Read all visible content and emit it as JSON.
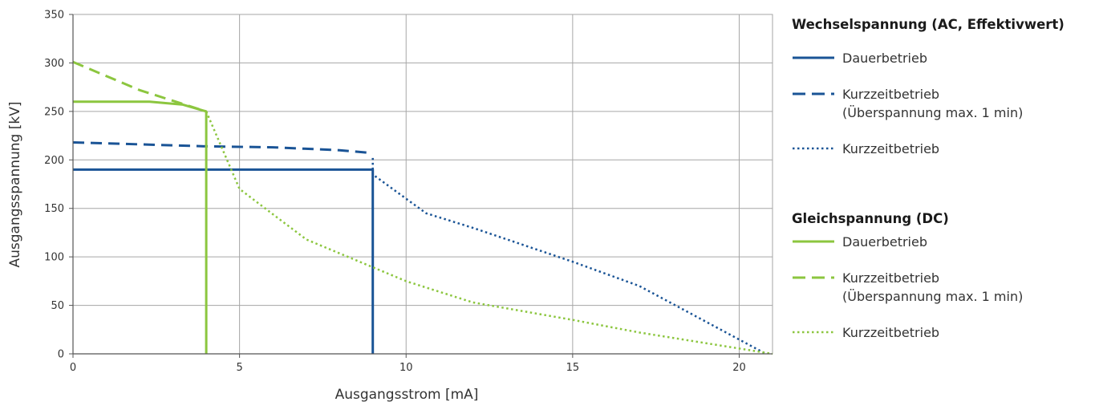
{
  "chart_data": {
    "type": "line",
    "xlabel": "Ausgangsstrom [mA]",
    "ylabel": "Ausgangsspannung [kV]",
    "xlim": [
      0,
      21
    ],
    "ylim": [
      0,
      350
    ],
    "xticks": [
      "0",
      "5",
      "10",
      "15",
      "20"
    ],
    "yticks": [
      "0",
      "50",
      "100",
      "150",
      "200",
      "250",
      "300",
      "350"
    ],
    "grid": true,
    "legend_position": "right",
    "colors": {
      "ac": "#1a5496",
      "dc": "#8cc63f",
      "grid": "#a6a6a6"
    },
    "groups": [
      {
        "heading": "Wechselspannung (AC, Effektivwert)",
        "series": [
          {
            "name": "Dauerbetrieb",
            "style": "solid",
            "x": [
              0,
              9,
              9
            ],
            "y": [
              190,
              190,
              0
            ]
          },
          {
            "name": "Kurzzeitbetrieb",
            "name2": "(Überspannung max. 1 min)",
            "style": "dashed",
            "x": [
              0,
              2,
              4,
              6,
              8,
              9
            ],
            "y": [
              218,
              216,
              214,
              213,
              210,
              207
            ]
          },
          {
            "name": "Kurzzeitbetrieb",
            "style": "dotted",
            "x": [
              9,
              9,
              10.6,
              12,
              15,
              17,
              20.8
            ],
            "y": [
              202,
              185,
              145,
              130,
              95,
              70,
              0
            ]
          }
        ]
      },
      {
        "heading": "Gleichspannung (DC)",
        "series": [
          {
            "name": "Dauerbetrieb",
            "style": "solid",
            "x": [
              0,
              2.3,
              3.3,
              4,
              4
            ],
            "y": [
              260,
              260,
              257,
              250,
              0
            ]
          },
          {
            "name": "Kurzzeitbetrieb",
            "name2": "(Überspannung max. 1 min)",
            "style": "dashed",
            "x": [
              0,
              2,
              4
            ],
            "y": [
              301,
              272,
              250
            ]
          },
          {
            "name": "Kurzzeitbetrieb",
            "style": "dotted",
            "x": [
              4,
              5,
              7,
              10,
              12,
              15,
              17,
              21
            ],
            "y": [
              250,
              170,
              118,
              75,
              53,
              35,
              22,
              0
            ]
          }
        ]
      }
    ]
  }
}
